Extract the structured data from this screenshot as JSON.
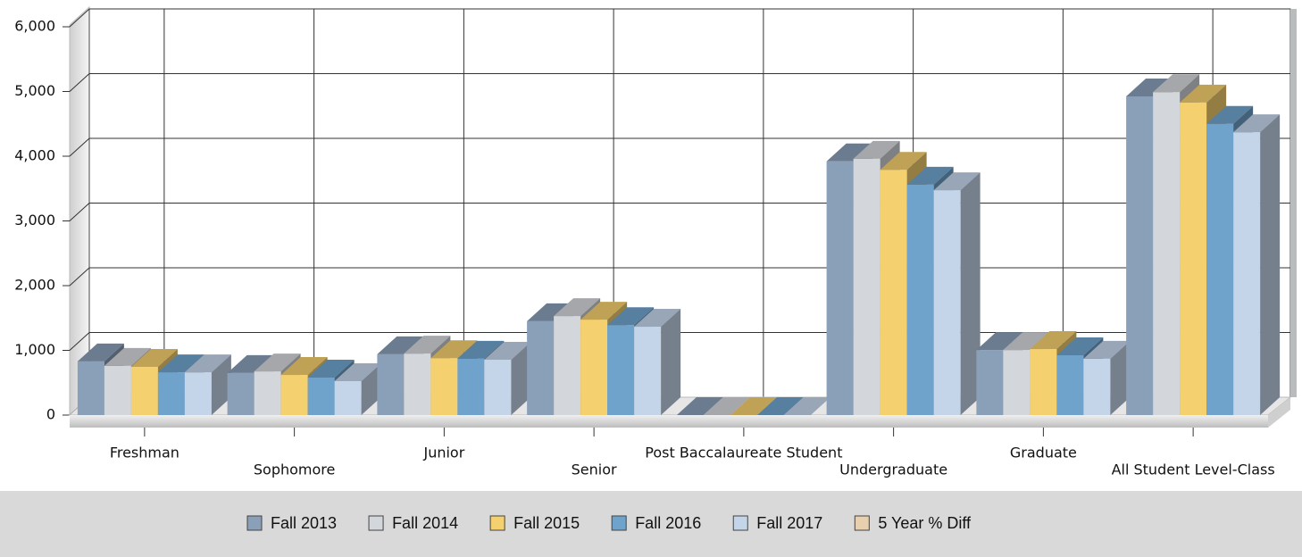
{
  "chart_data": {
    "type": "bar3d",
    "categories": [
      "Freshman",
      "Sophomore",
      "Junior",
      "Senior",
      "Post Baccalaureate Student",
      "Undergraduate",
      "Graduate",
      "All Student Level-Class"
    ],
    "series": [
      {
        "name": "Fall 2013",
        "color": "#8a9fb8",
        "values": [
          830,
          650,
          940,
          1450,
          0,
          3920,
          1005,
          4925
        ]
      },
      {
        "name": "Fall 2014",
        "color": "#d3d6db",
        "values": [
          760,
          675,
          950,
          1530,
          0,
          3960,
          1005,
          4990
        ]
      },
      {
        "name": "Fall 2015",
        "color": "#f5d06e",
        "values": [
          745,
          620,
          880,
          1475,
          0,
          3790,
          1020,
          4830
        ]
      },
      {
        "name": "Fall 2016",
        "color": "#6fa3cc",
        "values": [
          660,
          580,
          870,
          1390,
          0,
          3560,
          925,
          4500
        ]
      },
      {
        "name": "Fall 2017",
        "color": "#c4d5ea",
        "values": [
          660,
          525,
          855,
          1365,
          0,
          3475,
          870,
          4370
        ]
      },
      {
        "name": "5 Year % Diff",
        "color": "#e8cfae",
        "hidden": true,
        "values": [
          null,
          null,
          null,
          null,
          null,
          null,
          null,
          null
        ]
      }
    ],
    "ylim": [
      0,
      6000
    ],
    "yticks": [
      0,
      {
        "value": 1000,
        "label": "1,000"
      },
      {
        "value": 2000,
        "label": "2,000"
      },
      {
        "value": 3000,
        "label": "3,000"
      },
      {
        "value": 4000,
        "label": "4,000"
      },
      {
        "value": 5000,
        "label": "5,000"
      },
      {
        "value": 6000,
        "label": "6,000"
      }
    ],
    "grid": true,
    "legend": "bottom"
  }
}
